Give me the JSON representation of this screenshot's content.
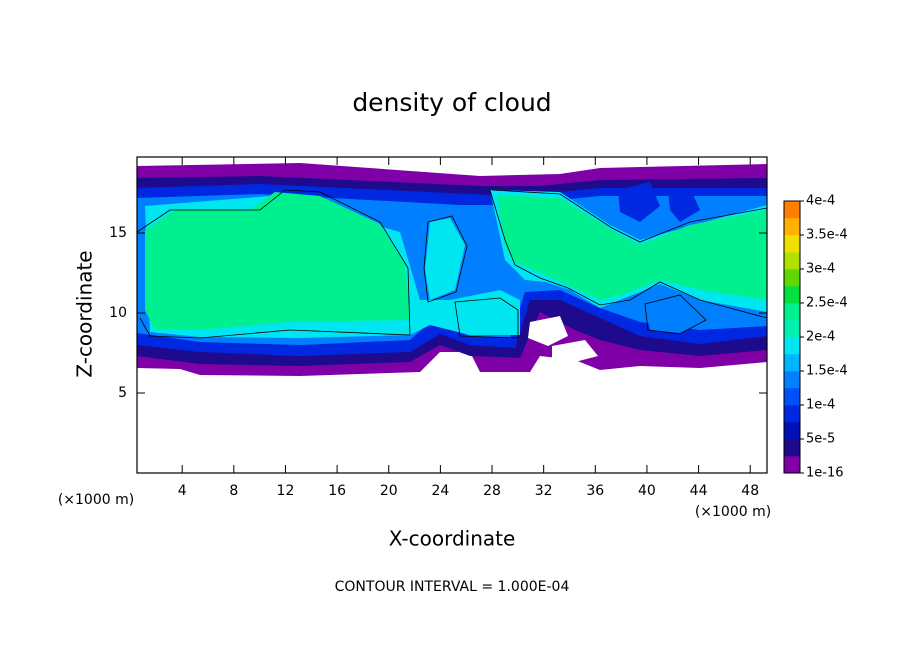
{
  "chart_data": {
    "type": "contour",
    "title": "density of cloud",
    "xlabel": "X-coordinate",
    "ylabel": "Z-coordinate",
    "x_unit": "(×1000 m)",
    "y_unit": "(×1000 m)",
    "footer": "CONTOUR INTERVAL = 1.000E-04",
    "xlim": [
      0.5,
      49.3
    ],
    "xticks": [
      4,
      8,
      12,
      16,
      20,
      24,
      28,
      32,
      36,
      40,
      44,
      48
    ],
    "ylim": [
      0,
      19.75
    ],
    "yticks": [
      5,
      10,
      15
    ],
    "colorbar": {
      "levels": [
        {
          "value": 1e-16,
          "label": "1e-16"
        },
        {
          "value": 5e-05,
          "label": "5e-5"
        },
        {
          "value": 0.0001,
          "label": "1e-4"
        },
        {
          "value": 0.00015,
          "label": "1.5e-4"
        },
        {
          "value": 0.0002,
          "label": "2e-4"
        },
        {
          "value": 0.00025,
          "label": "2.5e-4"
        },
        {
          "value": 0.0003,
          "label": "3e-4"
        },
        {
          "value": 0.00035,
          "label": "3.5e-4"
        },
        {
          "value": 0.0004,
          "label": "4e-4"
        }
      ],
      "colors": [
        "#8000a8",
        "#1e0a8c",
        "#0010b4",
        "#0028e0",
        "#0050f8",
        "#0080ff",
        "#00b4ff",
        "#00e6f0",
        "#00f0b4",
        "#00f090",
        "#00e040",
        "#60d800",
        "#b0e000",
        "#f0e000",
        "#ffb000",
        "#ff8000"
      ]
    }
  }
}
